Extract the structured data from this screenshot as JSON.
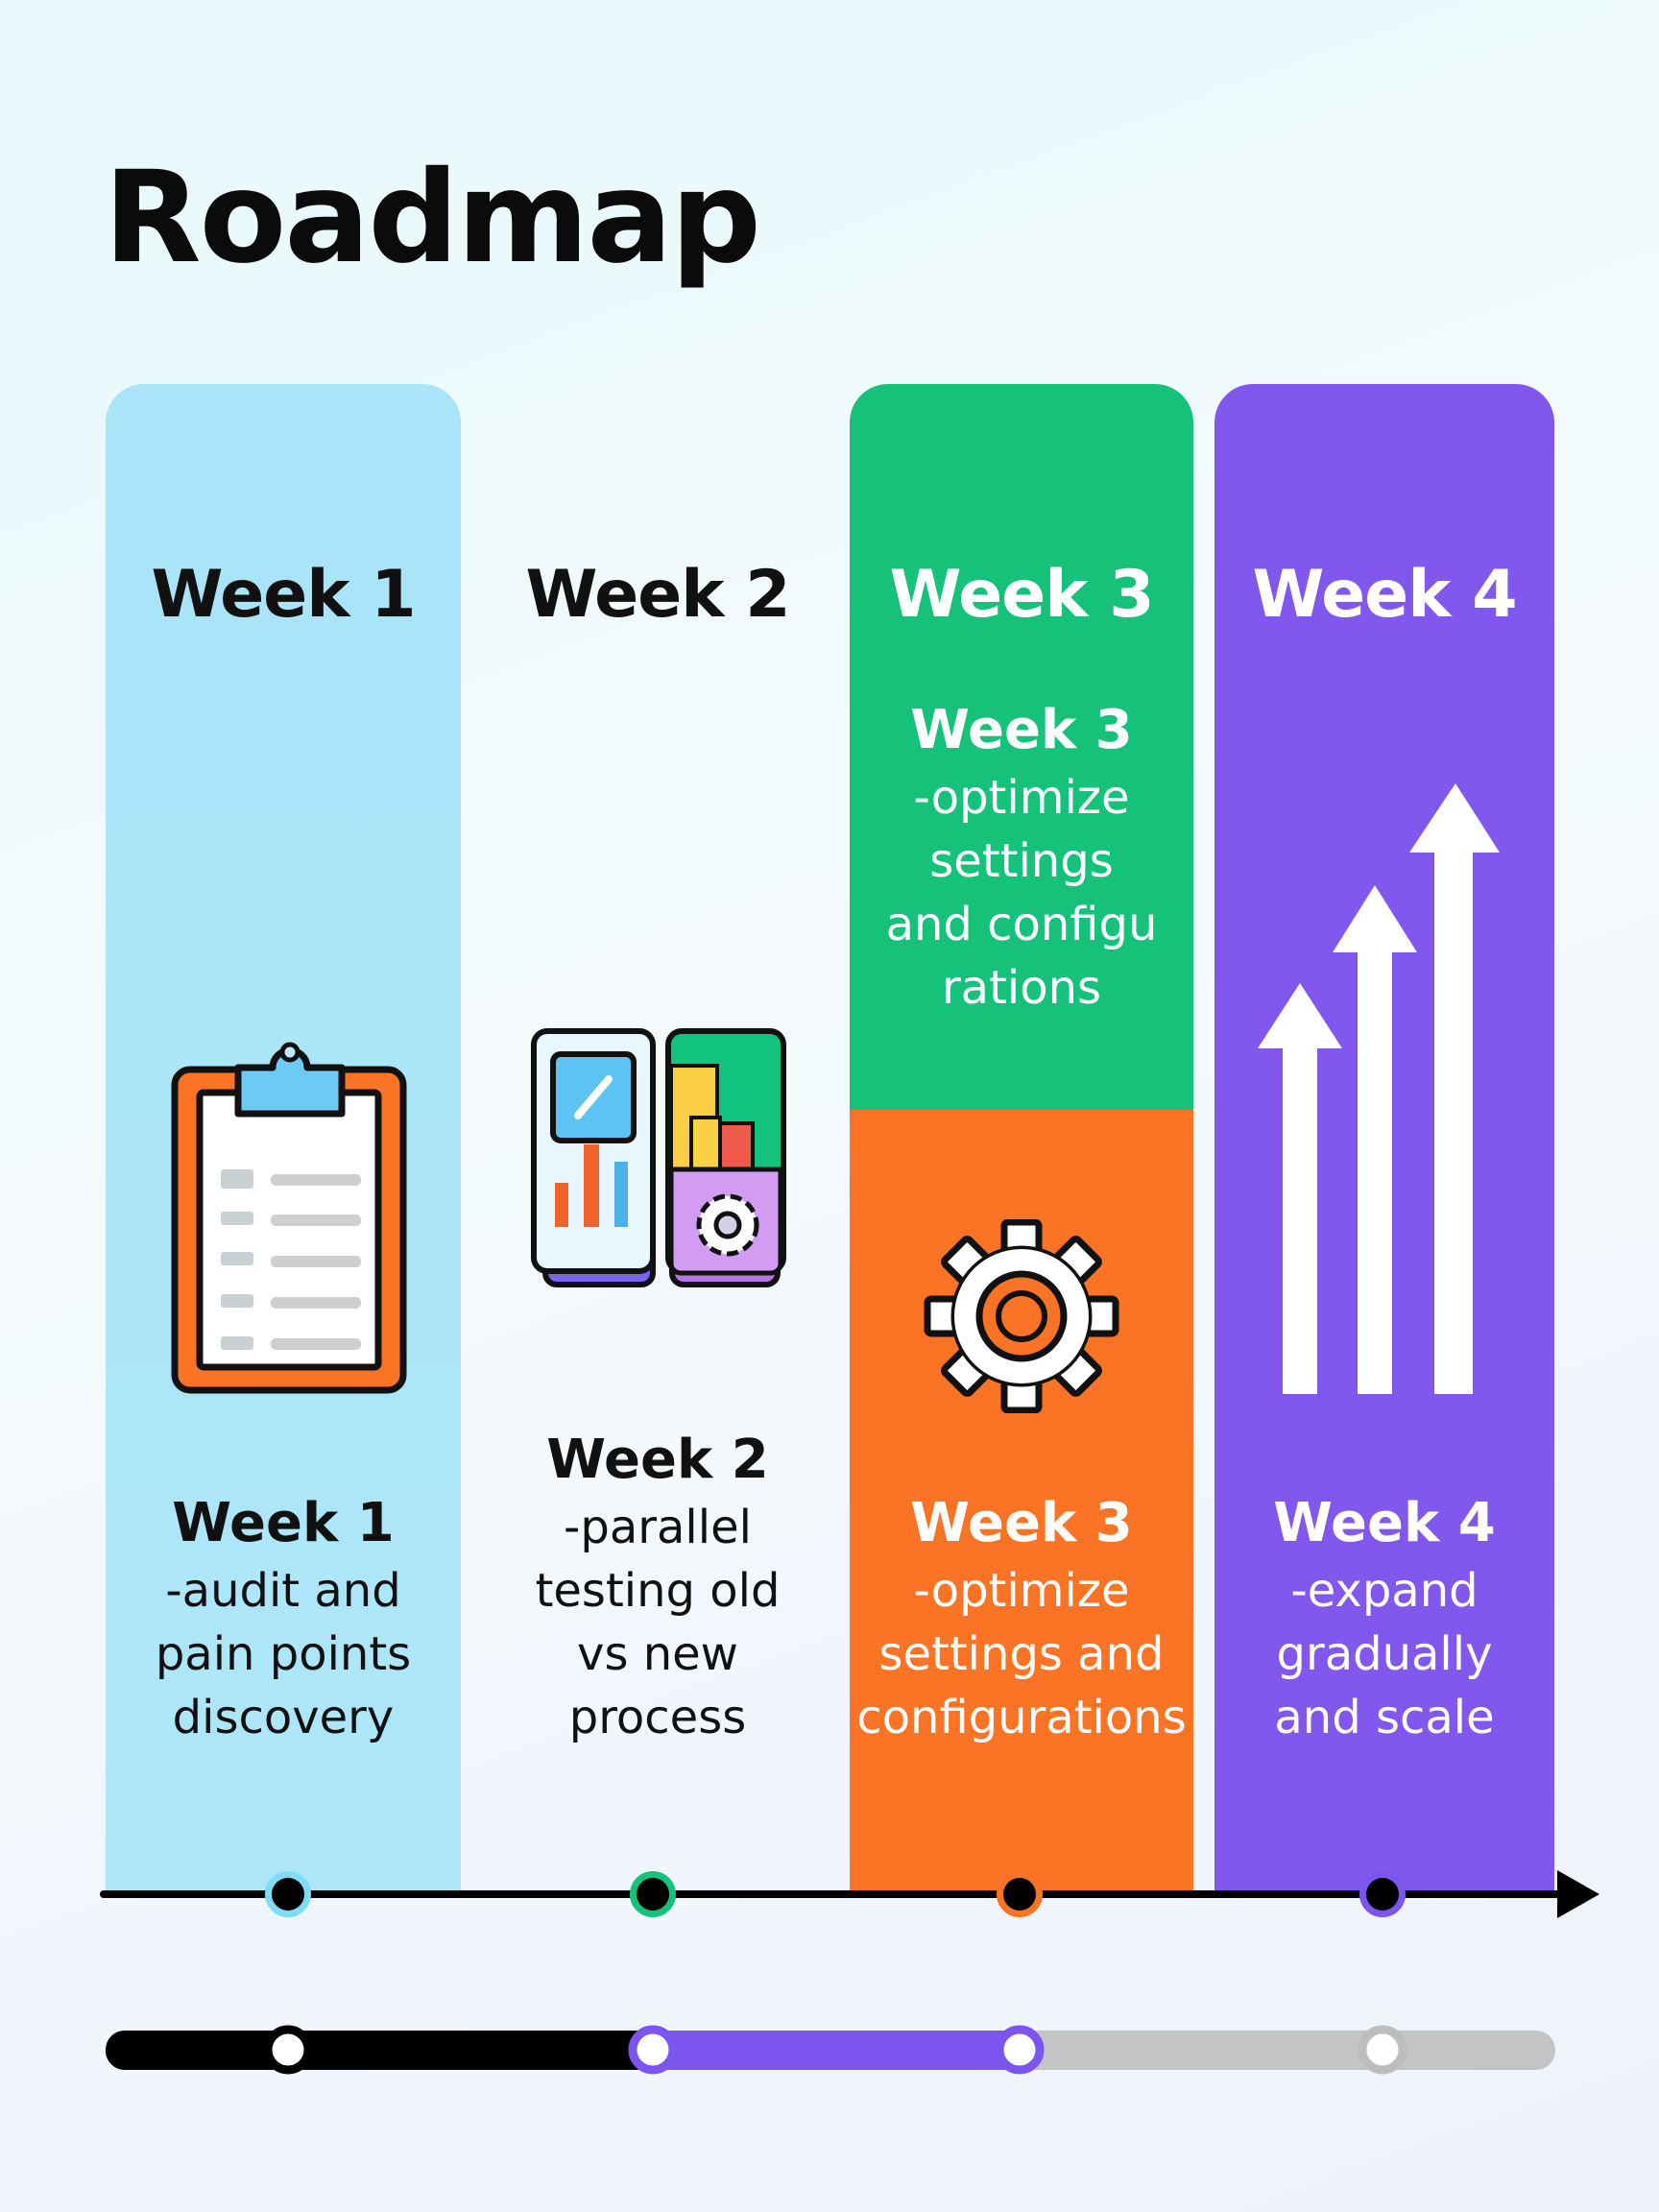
{
  "title": "Roadmap",
  "columns": [
    {
      "header": "Week 1",
      "label": "Week 1",
      "desc": [
        "-audit and",
        "pain points",
        "discovery"
      ],
      "icon": "clipboard-icon",
      "color": "#aee6f9"
    },
    {
      "header": "Week 2",
      "label": "Week 2",
      "desc": [
        "-parallel",
        "testing old",
        "vs new",
        "process"
      ],
      "icon": "devices-dashboard-icon",
      "color": "#f0fafc"
    },
    {
      "header": "Week 3",
      "top_label": "Week 3",
      "top_desc": [
        "-optimize",
        "settings",
        "and configu",
        "rations"
      ],
      "label": "Week 3",
      "desc": [
        "-optimize",
        "settings and",
        "configurations"
      ],
      "icon": "gear-icon",
      "color_top": "#16c27a",
      "color": "#fb7325"
    },
    {
      "header": "Week 4",
      "label": "Week 4",
      "desc": [
        "-expand",
        "gradually",
        "and scale"
      ],
      "icon": "growth-arrows-icon",
      "color": "#8157ee"
    }
  ],
  "timeline": {
    "marker_colors": [
      "#7fdcf5",
      "#16c27a",
      "#fb7325",
      "#7b55ee"
    ]
  },
  "progress": {
    "completed_weeks": 2,
    "in_progress_week": 3,
    "colors": {
      "done": "#000000",
      "active": "#7b55ee",
      "pending": "#c4c4c4"
    }
  }
}
